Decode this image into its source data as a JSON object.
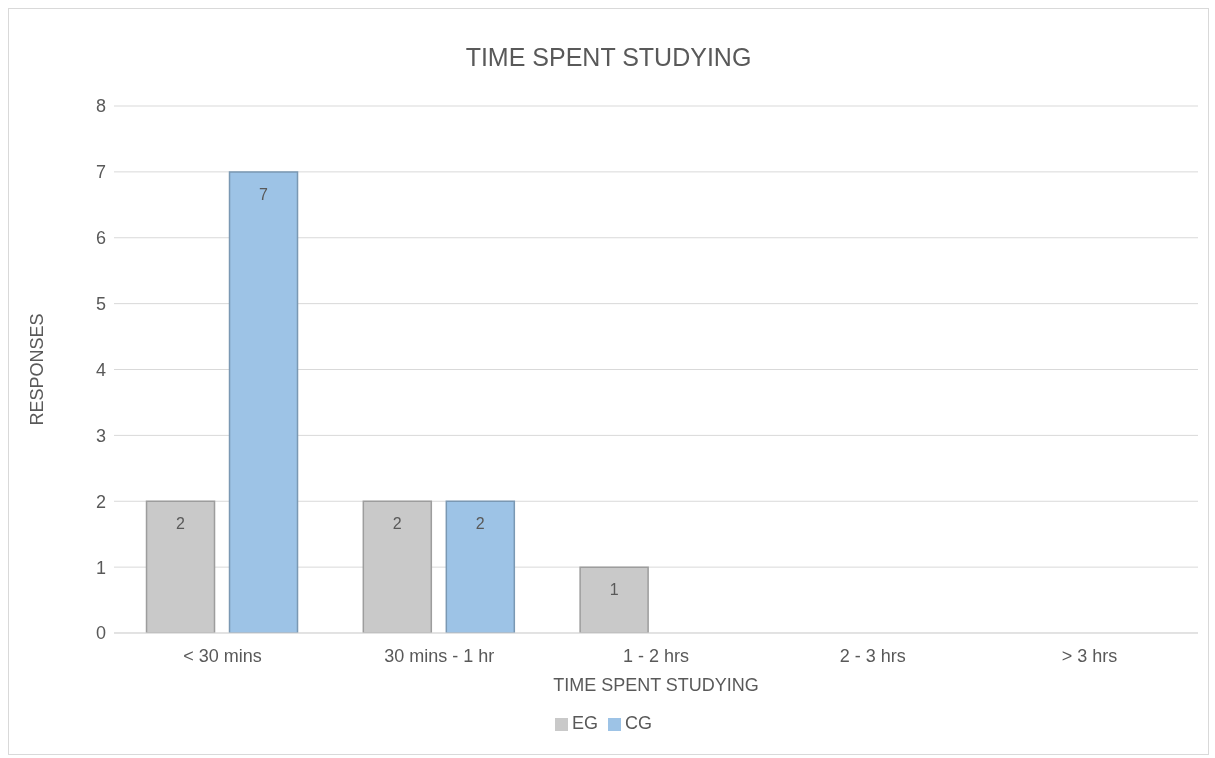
{
  "chart_data": {
    "type": "bar",
    "title": "TIME SPENT STUDYING",
    "xlabel": "TIME SPENT STUDYING",
    "ylabel": "RESPONSES",
    "categories": [
      "< 30 mins",
      "30 mins - 1 hr",
      "1 - 2 hrs",
      "2 - 3 hrs",
      "> 3 hrs"
    ],
    "series": [
      {
        "name": "EG",
        "color": "#c9c9c9",
        "values": [
          2,
          2,
          1,
          0,
          0
        ],
        "value_labels": [
          "2",
          "2",
          "1",
          null,
          null
        ]
      },
      {
        "name": "CG",
        "color": "#9dc3e6",
        "values": [
          7,
          2,
          0,
          0,
          0
        ],
        "value_labels": [
          "7",
          "2",
          null,
          null,
          null
        ]
      }
    ],
    "ylim": [
      0,
      8
    ],
    "yticks": [
      0,
      1,
      2,
      3,
      4,
      5,
      6,
      7,
      8
    ],
    "grid": "y",
    "legend": "bottom"
  }
}
